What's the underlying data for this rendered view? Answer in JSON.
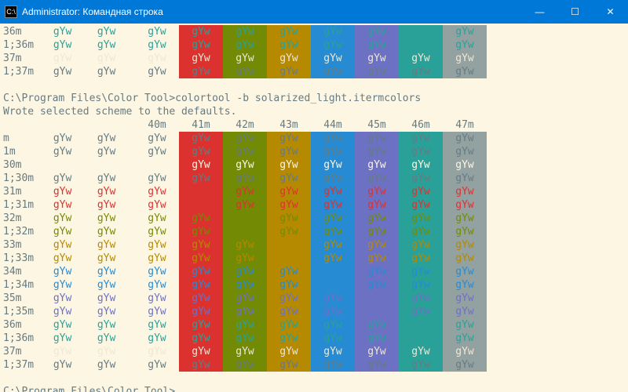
{
  "window": {
    "title": "Administrator: Командная строка",
    "icon_glyph": "C:\\",
    "min": "—",
    "max": "☐",
    "close": "✕"
  },
  "sample": "gYw",
  "blank": " ",
  "top_rows": [
    {
      "label": "36m",
      "fg": "#2aa198"
    },
    {
      "label": "1;36m",
      "fg": "#2aa198"
    },
    {
      "label": "37m",
      "fg": "#eee8d5"
    },
    {
      "label": "1;37m",
      "fg": "#657b83"
    }
  ],
  "cmd1": "C:\\Program Files\\Color Tool>colortool -b solarized_light.itermcolors",
  "msg1": "Wrote selected scheme to the defaults.",
  "headers": [
    "40m",
    "41m",
    "42m",
    "43m",
    "44m",
    "45m",
    "46m",
    "47m"
  ],
  "bg_colors": [
    "#fdf6e3",
    "#dc322f",
    "#738a05",
    "#b58900",
    "#268bd2",
    "#6c71c4",
    "#2aa198",
    "#93a1a1"
  ],
  "rows": [
    {
      "label": "m",
      "fg": "#657b83"
    },
    {
      "label": "1m",
      "fg": "#657b83"
    },
    {
      "label": "30m",
      "fg": "#fdf6e3"
    },
    {
      "label": "1;30m",
      "fg": "#657b83"
    },
    {
      "label": "31m",
      "fg": "#dc322f"
    },
    {
      "label": "1;31m",
      "fg": "#dc322f"
    },
    {
      "label": "32m",
      "fg": "#738a05"
    },
    {
      "label": "1;32m",
      "fg": "#738a05"
    },
    {
      "label": "33m",
      "fg": "#b58900"
    },
    {
      "label": "1;33m",
      "fg": "#b58900"
    },
    {
      "label": "34m",
      "fg": "#268bd2"
    },
    {
      "label": "1;34m",
      "fg": "#268bd2"
    },
    {
      "label": "35m",
      "fg": "#6c71c4"
    },
    {
      "label": "1;35m",
      "fg": "#6c71c4"
    },
    {
      "label": "36m",
      "fg": "#2aa198"
    },
    {
      "label": "1;36m",
      "fg": "#2aa198"
    },
    {
      "label": "37m",
      "fg": "#eee8d5"
    },
    {
      "label": "1;37m",
      "fg": "#657b83"
    }
  ],
  "prompt": "C:\\Program Files\\Color Tool>"
}
